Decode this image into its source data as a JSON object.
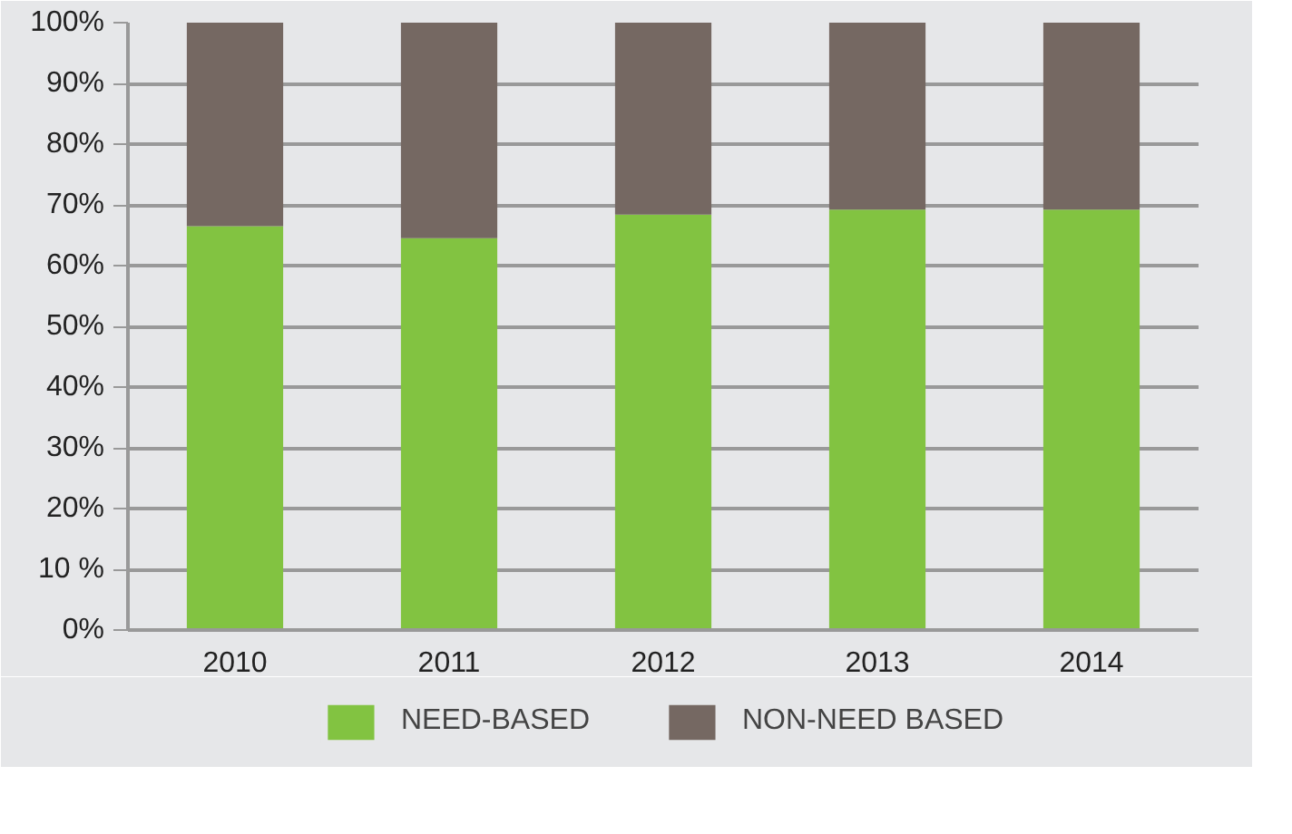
{
  "chart_data": {
    "type": "bar",
    "stacked": true,
    "categories": [
      "2010",
      "2011",
      "2012",
      "2013",
      "2014"
    ],
    "series": [
      {
        "name": "NEED-BASED",
        "color": "#82c341",
        "values": [
          66.5,
          64.5,
          68.4,
          69.2,
          69.2
        ]
      },
      {
        "name": "NON-NEED BASED",
        "color": "#756862",
        "values": [
          33.5,
          35.5,
          31.6,
          30.8,
          30.8
        ]
      }
    ],
    "ylim": [
      0,
      100
    ],
    "yticks": [
      {
        "value": 0,
        "label": "0%"
      },
      {
        "value": 10,
        "label": "10 %"
      },
      {
        "value": 20,
        "label": "20%"
      },
      {
        "value": 30,
        "label": "30%"
      },
      {
        "value": 40,
        "label": "40%"
      },
      {
        "value": 50,
        "label": "50%"
      },
      {
        "value": 60,
        "label": "60%"
      },
      {
        "value": 70,
        "label": "70%"
      },
      {
        "value": 80,
        "label": "80%"
      },
      {
        "value": 90,
        "label": "90%"
      },
      {
        "value": 100,
        "label": "100%"
      }
    ],
    "grid": "y",
    "legend": "bottom"
  }
}
